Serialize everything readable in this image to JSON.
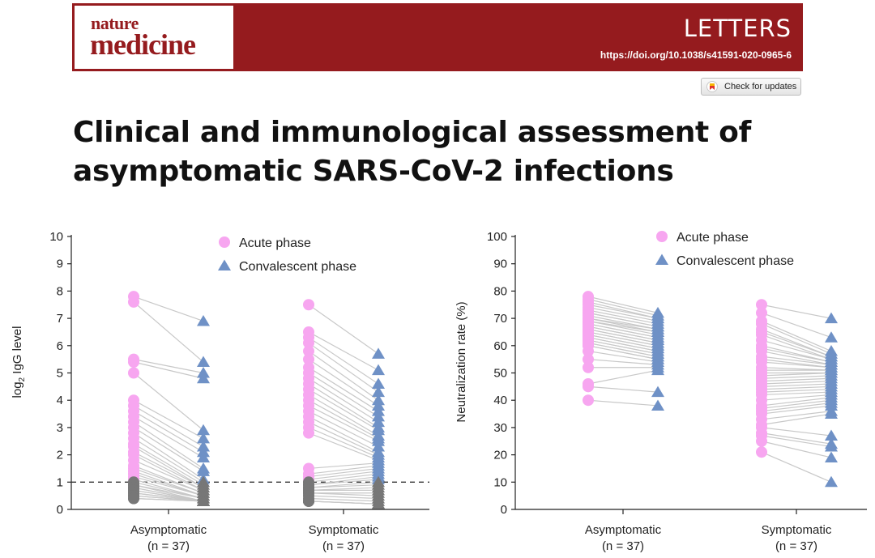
{
  "header": {
    "logo_line1": "nature",
    "logo_line2": "medicine",
    "section": "LETTERS",
    "doi": "https://doi.org/10.1038/s41591-020-0965-6",
    "check_updates": "Check for updates",
    "brand_color": "#951b1e"
  },
  "title": "Clinical and immunological assessment of asymptomatic SARS-CoV-2 infections",
  "chart_data": [
    {
      "type": "scatter",
      "ylabel": "log2 IgG level",
      "ylim": [
        0,
        10
      ],
      "yticks": [
        0,
        1,
        2,
        3,
        4,
        5,
        6,
        7,
        8,
        9,
        10
      ],
      "categories": [
        {
          "name": "Asymptomatic",
          "n": "(n = 37)"
        },
        {
          "name": "Symptomatic",
          "n": "(n = 37)"
        }
      ],
      "legend": {
        "placement": "top-center",
        "items": [
          "Acute phase",
          "Convalescent phase"
        ]
      },
      "threshold": 1,
      "colors": {
        "acute": "#f7a6f0",
        "convalescent": "#6f91c6",
        "below_threshold": "#777777",
        "line": "#c8c8c8"
      },
      "series": [
        {
          "name": "Acute phase",
          "marker": "circle",
          "values": [
            [
              7.8,
              7.6,
              5.5,
              5.4,
              5.0,
              4.0,
              3.8,
              3.6,
              3.4,
              3.2,
              3.0,
              2.8,
              2.6,
              2.4,
              2.3,
              2.1,
              2.0,
              1.8,
              1.6,
              1.5,
              1.4,
              1.3,
              1.2,
              1.1,
              1.0,
              0.9,
              0.9,
              0.8,
              0.8,
              0.7,
              0.7,
              0.6,
              0.6,
              0.5,
              0.5,
              0.4,
              0.4
            ],
            [
              7.5,
              6.5,
              6.3,
              6.1,
              5.8,
              5.5,
              5.2,
              5.0,
              4.8,
              4.6,
              4.4,
              4.2,
              4.0,
              3.8,
              3.6,
              3.4,
              3.2,
              3.0,
              2.8,
              1.5,
              1.3,
              1.2,
              1.1,
              1.0,
              0.9,
              0.9,
              0.8,
              0.8,
              0.7,
              0.7,
              0.6,
              0.6,
              0.5,
              0.4,
              0.3,
              0.3,
              0.3
            ]
          ]
        },
        {
          "name": "Convalescent phase",
          "marker": "triangle",
          "values": [
            [
              6.9,
              5.4,
              5.0,
              4.8,
              2.9,
              2.6,
              2.3,
              2.1,
              1.9,
              1.5,
              1.4,
              1.1,
              1.0,
              0.9,
              0.8,
              0.8,
              0.7,
              0.7,
              0.6,
              0.6,
              0.5,
              0.5,
              0.5,
              0.4,
              0.4,
              0.4,
              0.3,
              0.3,
              0.3,
              0.3,
              0.3,
              0.3,
              0.3,
              0.3,
              0.3,
              0.3,
              0.3
            ],
            [
              5.7,
              5.1,
              4.6,
              4.3,
              4.0,
              3.8,
              3.6,
              3.4,
              3.2,
              3.0,
              2.9,
              2.7,
              2.6,
              2.5,
              2.3,
              2.1,
              2.0,
              1.9,
              1.8,
              1.7,
              1.6,
              1.5,
              1.4,
              1.3,
              1.2,
              1.1,
              1.0,
              0.9,
              0.8,
              0.7,
              0.6,
              0.5,
              0.4,
              0.3,
              0.2,
              0.2,
              0.2
            ]
          ]
        }
      ]
    },
    {
      "type": "scatter",
      "ylabel": "Neutralization rate (%)",
      "ylim": [
        0,
        100
      ],
      "yticks": [
        0,
        10,
        20,
        30,
        40,
        50,
        60,
        70,
        80,
        90,
        100
      ],
      "categories": [
        {
          "name": "Asymptomatic",
          "n": "(n = 37)"
        },
        {
          "name": "Symptomatic",
          "n": "(n = 37)"
        }
      ],
      "legend": {
        "placement": "top-center",
        "items": [
          "Acute phase",
          "Convalescent phase"
        ]
      },
      "colors": {
        "acute": "#f7a6f0",
        "convalescent": "#6f91c6",
        "line": "#c8c8c8"
      },
      "series": [
        {
          "name": "Acute phase",
          "marker": "circle",
          "values": [
            [
              78,
              77,
              76,
              75,
              74,
              73,
              72,
              72,
              71,
              70,
              70,
              69,
              69,
              68,
              68,
              67,
              67,
              66,
              66,
              65,
              65,
              64,
              64,
              63,
              63,
              62,
              62,
              61,
              61,
              60,
              60,
              58,
              55,
              52,
              46,
              45,
              40
            ],
            [
              75,
              72,
              69,
              68,
              66,
              65,
              64,
              62,
              60,
              59,
              58,
              56,
              55,
              54,
              52,
              51,
              50,
              49,
              48,
              47,
              46,
              45,
              44,
              43,
              42,
              40,
              38,
              37,
              36,
              35,
              33,
              31,
              30,
              28,
              27,
              25,
              21
            ]
          ]
        },
        {
          "name": "Convalescent phase",
          "marker": "triangle",
          "values": [
            [
              72,
              71,
              70,
              70,
              69,
              68,
              67,
              67,
              66,
              66,
              65,
              65,
              64,
              63,
              63,
              62,
              62,
              61,
              61,
              60,
              60,
              59,
              59,
              58,
              58,
              57,
              57,
              56,
              56,
              55,
              55,
              54,
              53,
              52,
              51,
              43,
              38
            ],
            [
              70,
              63,
              58,
              57,
              56,
              56,
              55,
              55,
              54,
              54,
              53,
              53,
              52,
              52,
              51,
              51,
              50,
              50,
              49,
              48,
              47,
              46,
              45,
              44,
              43,
              42,
              41,
              40,
              39,
              38,
              36,
              35,
              27,
              24,
              23,
              19,
              10
            ]
          ]
        }
      ]
    }
  ]
}
